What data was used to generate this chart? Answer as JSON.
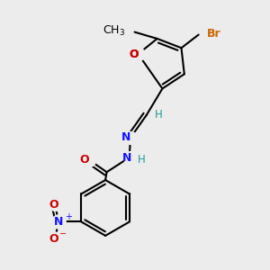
{
  "bg_color": "#ececec",
  "bond_color": "#000000",
  "bond_lw": 1.5,
  "N_color": "#1414ff",
  "O_color": "#cc0000",
  "Br_color": "#cc6600",
  "H_color": "#1a9a9a",
  "C_color": "#000000",
  "font_size": 9,
  "xlim": [
    0.0,
    1.0
  ],
  "ylim": [
    0.0,
    1.0
  ]
}
